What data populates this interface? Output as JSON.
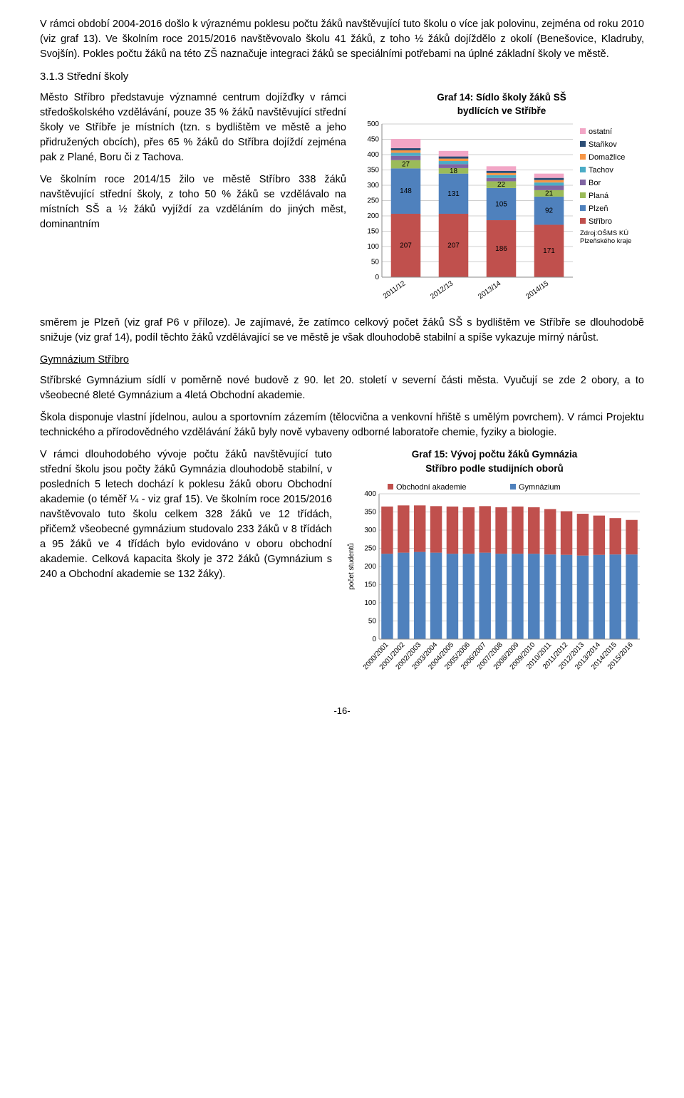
{
  "para1": "V rámci období 2004-2016 došlo k výraznému poklesu počtu žáků navštěvující tuto školu o více jak polovinu, zejména od roku 2010 (viz graf 13). Ve školním roce 2015/2016 navštěvovalo školu 41 žáků, z toho ½ žáků dojíždělo z okolí (Benešovice, Kladruby, Svojšín). Pokles počtu žáků na této ZŠ naznačuje integraci žáků se speciálními potřebami na úplné základní školy ve městě.",
  "sect313": "3.1.3    Střední školy",
  "left1": "Město Stříbro představuje významné centrum dojížďky v rámci středoškolského vzdělávání, pouze 35 % žáků navštěvující střední školy ve Stříbře je místních (tzn. s bydlištěm ve městě a jeho přidružených obcích), přes 65 % žáků do Stříbra dojíždí zejména pak z Plané, Boru či z Tachova.",
  "left2": "Ve školním roce 2014/15 žilo ve městě Stříbro 338 žáků navštěvující střední školy, z toho 50 % žáků se vzdělávalo na místních SŠ a ½ žáků vyjíždí za vzděláním do jiných měst, dominantním",
  "para2": "směrem je Plzeň (viz graf P6 v příloze). Je zajímavé, že zatímco celkový počet žáků SŠ s bydlištěm ve Stříbře se dlouhodobě snižuje (viz graf 14), podíl těchto žáků vzdělávající se ve městě je však dlouhodobě stabilní a spíše vykazuje mírný nárůst.",
  "gym_head": "Gymnázium Stříbro",
  "para3": "Stříbrské Gymnázium sídlí v poměrně nové budově z 90. let 20. století v severní části města. Vyučují se zde 2 obory, a to všeobecné 8leté Gymnázium a 4letá Obchodní akademie.",
  "para4": "Škola disponuje vlastní jídelnou, aulou a sportovním zázemím (tělocvična a venkovní hřiště s umělým povrchem). V rámci Projektu technického a přírodovědného vzdělávání žáků byly nově vybaveny odborné laboratoře chemie, fyziky a biologie.",
  "left3": "V rámci dlouhodobého vývoje počtu žáků navštěvující tuto střední školu jsou počty žáků Gymnázia dlouhodobě stabilní, v posledních 5 letech dochází k poklesu žáků oboru Obchodní akademie (o téměř ¼ - viz graf 15). Ve školním roce 2015/2016 navštěvovalo tuto školu celkem 328 žáků ve 12 třídách, přičemž všeobecné gymnázium studovalo 233 žáků v 8 třídách a 95 žáků ve 4 třídách bylo evidováno v oboru obchodní akademie. Celková kapacita školy je 372 žáků (Gymnázium s 240 a Obchodní akademie se 132 žáky).",
  "footer": "-16-",
  "chart14": {
    "title1": "Graf 14: Sídlo školy žáků SŠ",
    "title2": "bydlících ve Stříbře",
    "categories": [
      "2011/12",
      "2012/13",
      "2013/14",
      "2014/15"
    ],
    "series": [
      {
        "name": "Stříbro",
        "values": [
          207,
          207,
          186,
          171
        ],
        "color": "#c0504d"
      },
      {
        "name": "Plzeň",
        "values": [
          148,
          131,
          105,
          92
        ],
        "color": "#4f81bd"
      },
      {
        "name": "Planá",
        "values": [
          27,
          18,
          22,
          21
        ],
        "color": "#9bbb59"
      },
      {
        "name": "Bor",
        "values": [
          14,
          13,
          11,
          15
        ],
        "color": "#8064a2"
      },
      {
        "name": "Tachov",
        "values": [
          10,
          10,
          9,
          10
        ],
        "color": "#4bacc6"
      },
      {
        "name": "Domažlice",
        "values": [
          8,
          8,
          7,
          8
        ],
        "color": "#f79646"
      },
      {
        "name": "Staňkov",
        "values": [
          7,
          7,
          7,
          7
        ],
        "color": "#2c4d75"
      },
      {
        "name": "ostatní",
        "values": [
          30,
          18,
          15,
          14
        ],
        "color": "#f2a6c6"
      }
    ],
    "show_labels": [
      {
        "seg": 0,
        "col": 0,
        "val": "207"
      },
      {
        "seg": 0,
        "col": 1,
        "val": "207"
      },
      {
        "seg": 0,
        "col": 2,
        "val": "186"
      },
      {
        "seg": 0,
        "col": 3,
        "val": "171"
      },
      {
        "seg": 1,
        "col": 0,
        "val": "148"
      },
      {
        "seg": 1,
        "col": 1,
        "val": "131"
      },
      {
        "seg": 1,
        "col": 2,
        "val": "105"
      },
      {
        "seg": 1,
        "col": 3,
        "val": "92"
      },
      {
        "seg": 2,
        "col": 0,
        "val": "27"
      },
      {
        "seg": 2,
        "col": 1,
        "val": "18"
      },
      {
        "seg": 2,
        "col": 2,
        "val": "22"
      },
      {
        "seg": 2,
        "col": 3,
        "val": "21"
      }
    ],
    "legend_order": [
      "ostatní",
      "Staňkov",
      "Domažlice",
      "Tachov",
      "Bor",
      "Planá",
      "Plzeň",
      "Stříbro"
    ],
    "legend_colors": {
      "ostatní": "#f2a6c6",
      "Staňkov": "#2c4d75",
      "Domažlice": "#f79646",
      "Tachov": "#4bacc6",
      "Bor": "#8064a2",
      "Planá": "#9bbb59",
      "Plzeň": "#4f81bd",
      "Stříbro": "#c0504d"
    },
    "ylim": [
      0,
      500
    ],
    "ytick_step": 50,
    "bar_width": 0.62,
    "grid_color": "#bfbfbf",
    "source1": "Zdroj:OŠMS KÚ",
    "source2": "Plzeňského kraje"
  },
  "chart15": {
    "title1": "Graf 15: Vývoj počtu žáků Gymnázia",
    "title2": "Stříbro podle studijních oborů",
    "categories": [
      "2000/2001",
      "2001/2002",
      "2002/2003",
      "2003/2004",
      "2004/2005",
      "2005/2006",
      "2006/2007",
      "2007/2008",
      "2008/2009",
      "2009/2010",
      "2010/2011",
      "2011/2012",
      "2012/2013",
      "2013/2014",
      "2014/2015",
      "2015/2016"
    ],
    "series": [
      {
        "name": "Obchodní akademie",
        "values": [
          130,
          130,
          128,
          128,
          130,
          128,
          128,
          128,
          130,
          128,
          125,
          120,
          115,
          108,
          100,
          95
        ],
        "color": "#c0504d"
      },
      {
        "name": "Gymnázium",
        "values": [
          235,
          238,
          240,
          238,
          235,
          235,
          238,
          235,
          235,
          235,
          233,
          232,
          230,
          232,
          233,
          233
        ],
        "color": "#4f81bd"
      }
    ],
    "ylim": [
      0,
      400
    ],
    "ytick_step": 50,
    "ylabel": "počet studentů",
    "bar_width": 0.72,
    "grid_color": "#bfbfbf"
  }
}
